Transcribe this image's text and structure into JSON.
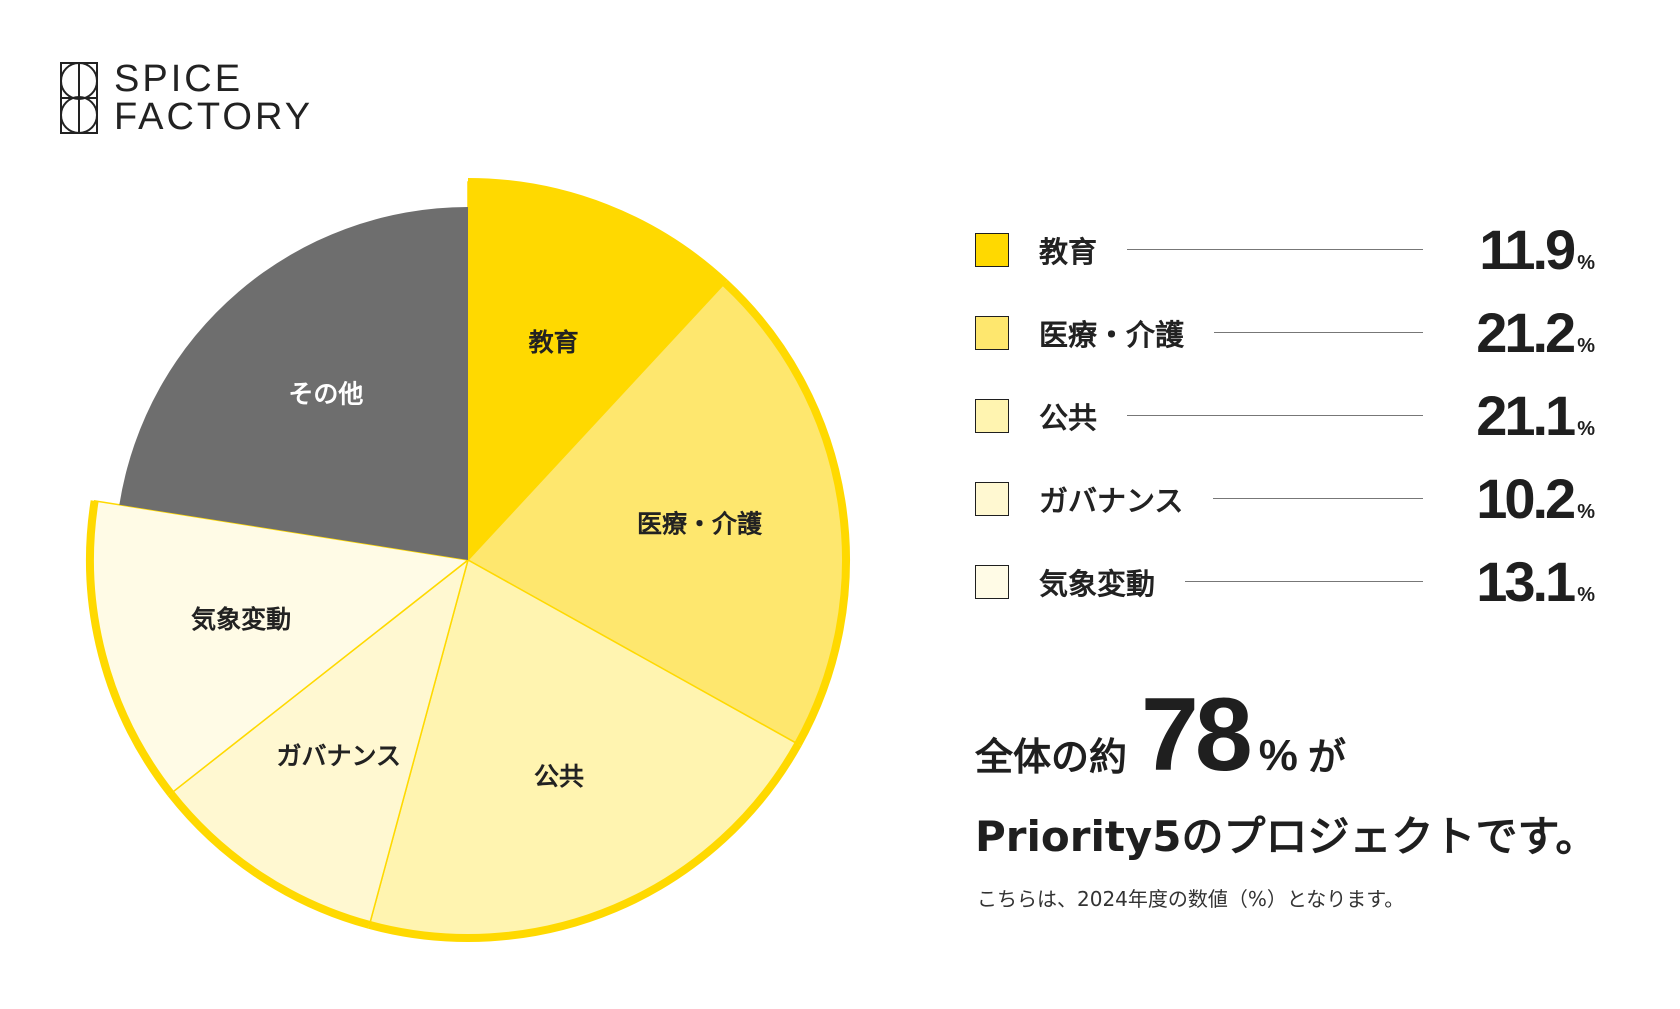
{
  "brand": {
    "line1": "SPICE",
    "line2": "FACTORY"
  },
  "chart_data": {
    "type": "pie",
    "slices": [
      {
        "label": "教育",
        "value": 11.9,
        "color": "#FFD900"
      },
      {
        "label": "医療・介護",
        "value": 21.2,
        "color": "#FEE76E"
      },
      {
        "label": "公共",
        "value": 21.1,
        "color": "#FFF4B0"
      },
      {
        "label": "ガバナンス",
        "value": 10.2,
        "color": "#FFF8D1"
      },
      {
        "label": "気象変動",
        "value": 13.1,
        "color": "#FFFBE6"
      },
      {
        "label": "その他",
        "value": 22.5,
        "color": "#6E6E6E"
      }
    ],
    "outline_color": "#FFD900",
    "legend_unit": "%"
  },
  "summary": {
    "prefix": "全体の約",
    "number": "78",
    "percent": "%",
    "suffix": "が",
    "line2": "Priority5のプロジェクトです。"
  },
  "note": "こちらは、2024年度の数値（%）となります。"
}
